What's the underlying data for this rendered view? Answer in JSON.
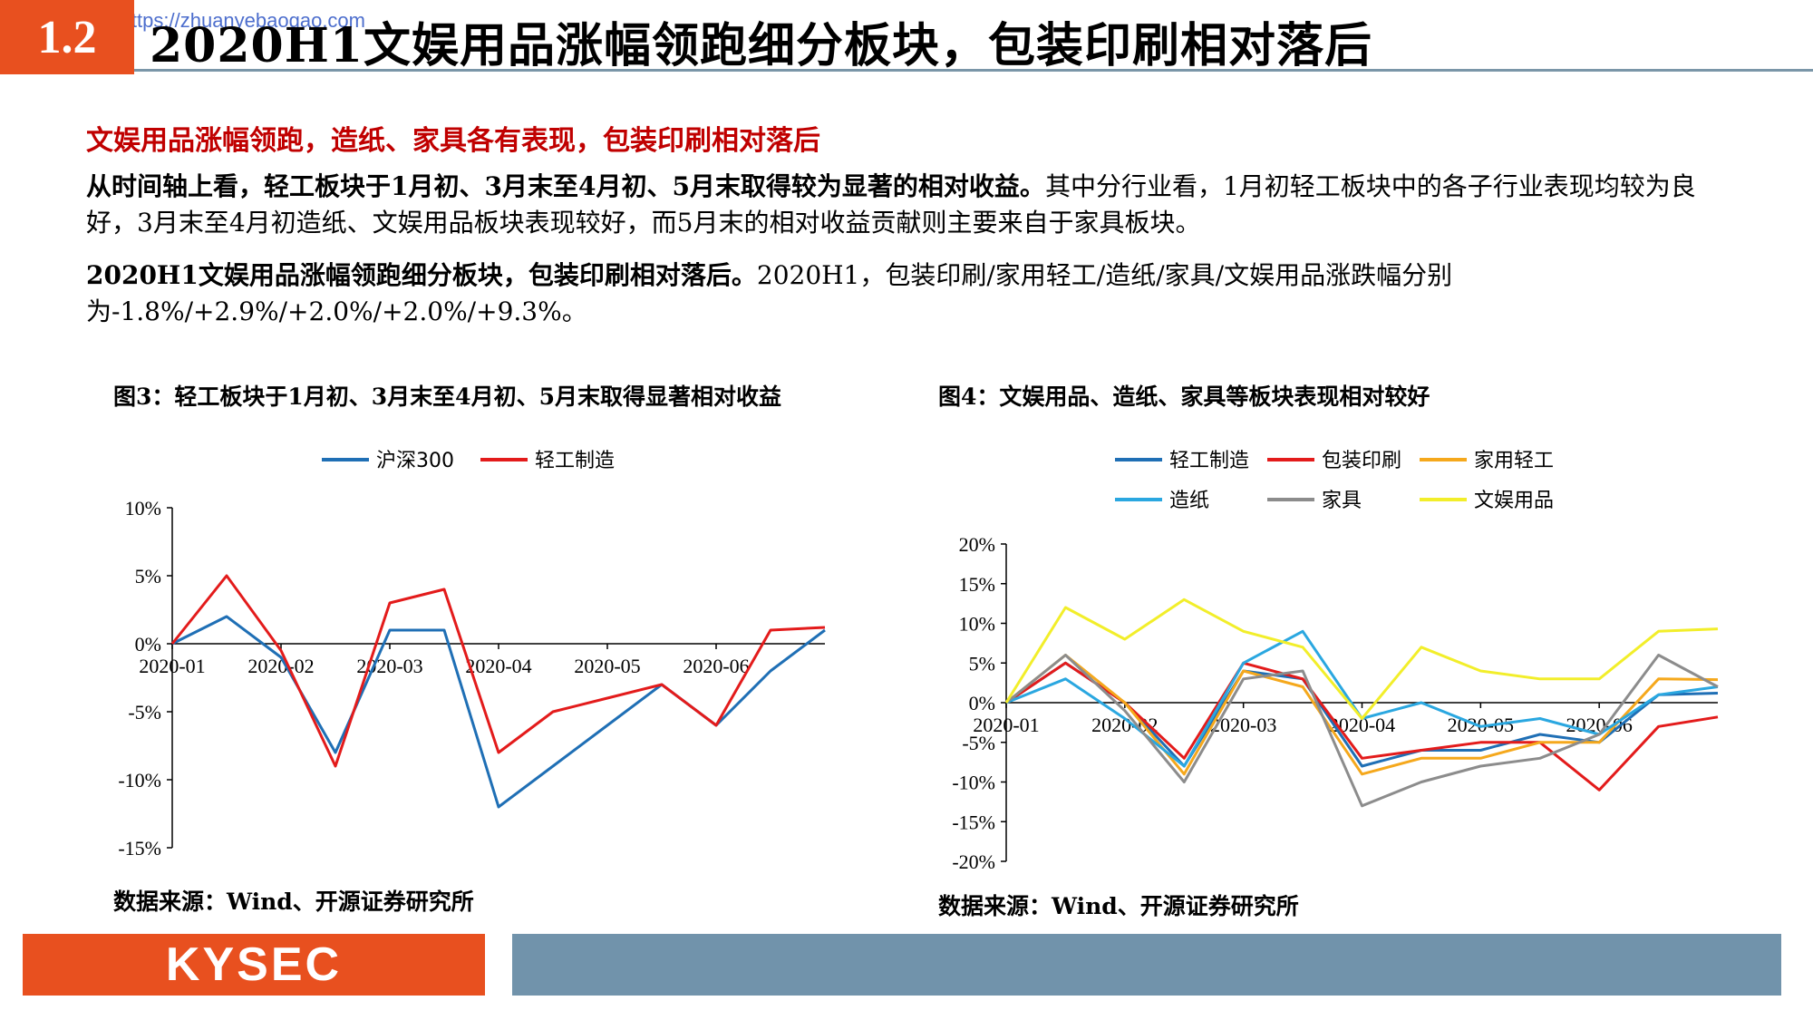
{
  "watermark": "Image From https://zhuanyebaogao.com",
  "header": {
    "section_number": "1.2",
    "title": "2020H1文娱用品涨幅领跑细分板块，包装印刷相对落后"
  },
  "subhead": "文娱用品涨幅领跑，造纸、家具各有表现，包装印刷相对落后",
  "paragraph1": {
    "bold": "从时间轴上看，轻工板块于1月初、3月末至4月初、5月末取得较为显著的相对收益。",
    "normal": "其中分行业看，1月初轻工板块中的各子行业表现均较为良好，3月末至4月初造纸、文娱用品板块表现较好，而5月末的相对收益贡献则主要来自于家具板块。"
  },
  "paragraph2": {
    "bold": "2020H1文娱用品涨幅领跑细分板块，包装印刷相对落后。",
    "normal": "2020H1，包装印刷/家用轻工/造纸/家具/文娱用品涨跌幅分别为-1.8%/+2.9%/+2.0%/+2.0%/+9.3%。"
  },
  "figure3": {
    "title": "图3：轻工板块于1月初、3月末至4月初、5月末取得显著相对收益",
    "source": "数据来源：Wind、开源证券研究所"
  },
  "figure4": {
    "title": "图4：文娱用品、造纸、家具等板块表现相对较好",
    "source": "数据来源：Wind、开源证券研究所"
  },
  "footer": {
    "logo": "KYSEC"
  },
  "chart_data": [
    {
      "type": "line",
      "title": "图3：轻工板块于1月初、3月末至4月初、5月末取得显著相对收益",
      "x": [
        "2020-01",
        "2020-01-15",
        "2020-02",
        "2020-02-15",
        "2020-03",
        "2020-03-15",
        "2020-04",
        "2020-04-15",
        "2020-05",
        "2020-05-15",
        "2020-06",
        "2020-06-15",
        "2020-06-30"
      ],
      "x_tick_labels": [
        "2020-01",
        "2020-02",
        "2020-03",
        "2020-04",
        "2020-05",
        "2020-06"
      ],
      "y_tick_labels": [
        "10%",
        "5%",
        "0%",
        "-5%",
        "-10%",
        "-15%"
      ],
      "ylim": [
        -15,
        10
      ],
      "legend_position": "top",
      "series": [
        {
          "name": "沪深300",
          "color": "#1f6fb5",
          "values": [
            0,
            2,
            -1,
            -8,
            1,
            1,
            -12,
            -9,
            -6,
            -3,
            -6,
            -2,
            1
          ]
        },
        {
          "name": "轻工制造",
          "color": "#e31b1b",
          "values": [
            0,
            5,
            -0.5,
            -9,
            3,
            4,
            -8,
            -5,
            -4,
            -3,
            -6,
            1,
            1.2
          ]
        }
      ]
    },
    {
      "type": "line",
      "title": "图4：文娱用品、造纸、家具等板块表现相对较好",
      "x": [
        "2020-01",
        "2020-01-15",
        "2020-02",
        "2020-02-15",
        "2020-03",
        "2020-03-15",
        "2020-04",
        "2020-04-15",
        "2020-05",
        "2020-05-15",
        "2020-06",
        "2020-06-15",
        "2020-06-30"
      ],
      "x_tick_labels": [
        "2020-01",
        "2020-02",
        "2020-03",
        "2020-04",
        "2020-05",
        "2020-06"
      ],
      "y_tick_labels": [
        "20%",
        "15%",
        "10%",
        "5%",
        "0%",
        "-5%",
        "-10%",
        "-15%",
        "-20%"
      ],
      "ylim": [
        -20,
        20
      ],
      "legend_position": "top",
      "series": [
        {
          "name": "轻工制造",
          "color": "#1f6fb5",
          "values": [
            0,
            5,
            0,
            -8,
            4,
            3,
            -8,
            -6,
            -6,
            -4,
            -5,
            1,
            1.2
          ]
        },
        {
          "name": "包装印刷",
          "color": "#e31b1b",
          "values": [
            0,
            5,
            0,
            -7,
            5,
            3,
            -7,
            -6,
            -5,
            -5,
            -11,
            -3,
            -1.8
          ]
        },
        {
          "name": "家用轻工",
          "color": "#f5a81c",
          "values": [
            0,
            6,
            0,
            -9,
            4,
            2,
            -9,
            -7,
            -7,
            -5,
            -5,
            3,
            2.9
          ]
        },
        {
          "name": "造纸",
          "color": "#2aa7e0",
          "values": [
            0,
            3,
            -2,
            -8,
            5,
            9,
            -2,
            0,
            -3,
            -2,
            -4,
            1,
            2.0
          ]
        },
        {
          "name": "家具",
          "color": "#8c8c8c",
          "values": [
            0,
            6,
            -1,
            -10,
            3,
            4,
            -13,
            -10,
            -8,
            -7,
            -4,
            6,
            2.0
          ]
        },
        {
          "name": "文娱用品",
          "color": "#f2ee2a",
          "values": [
            0,
            12,
            8,
            13,
            9,
            7,
            -2,
            7,
            4,
            3,
            3,
            9,
            9.3
          ]
        }
      ]
    }
  ]
}
